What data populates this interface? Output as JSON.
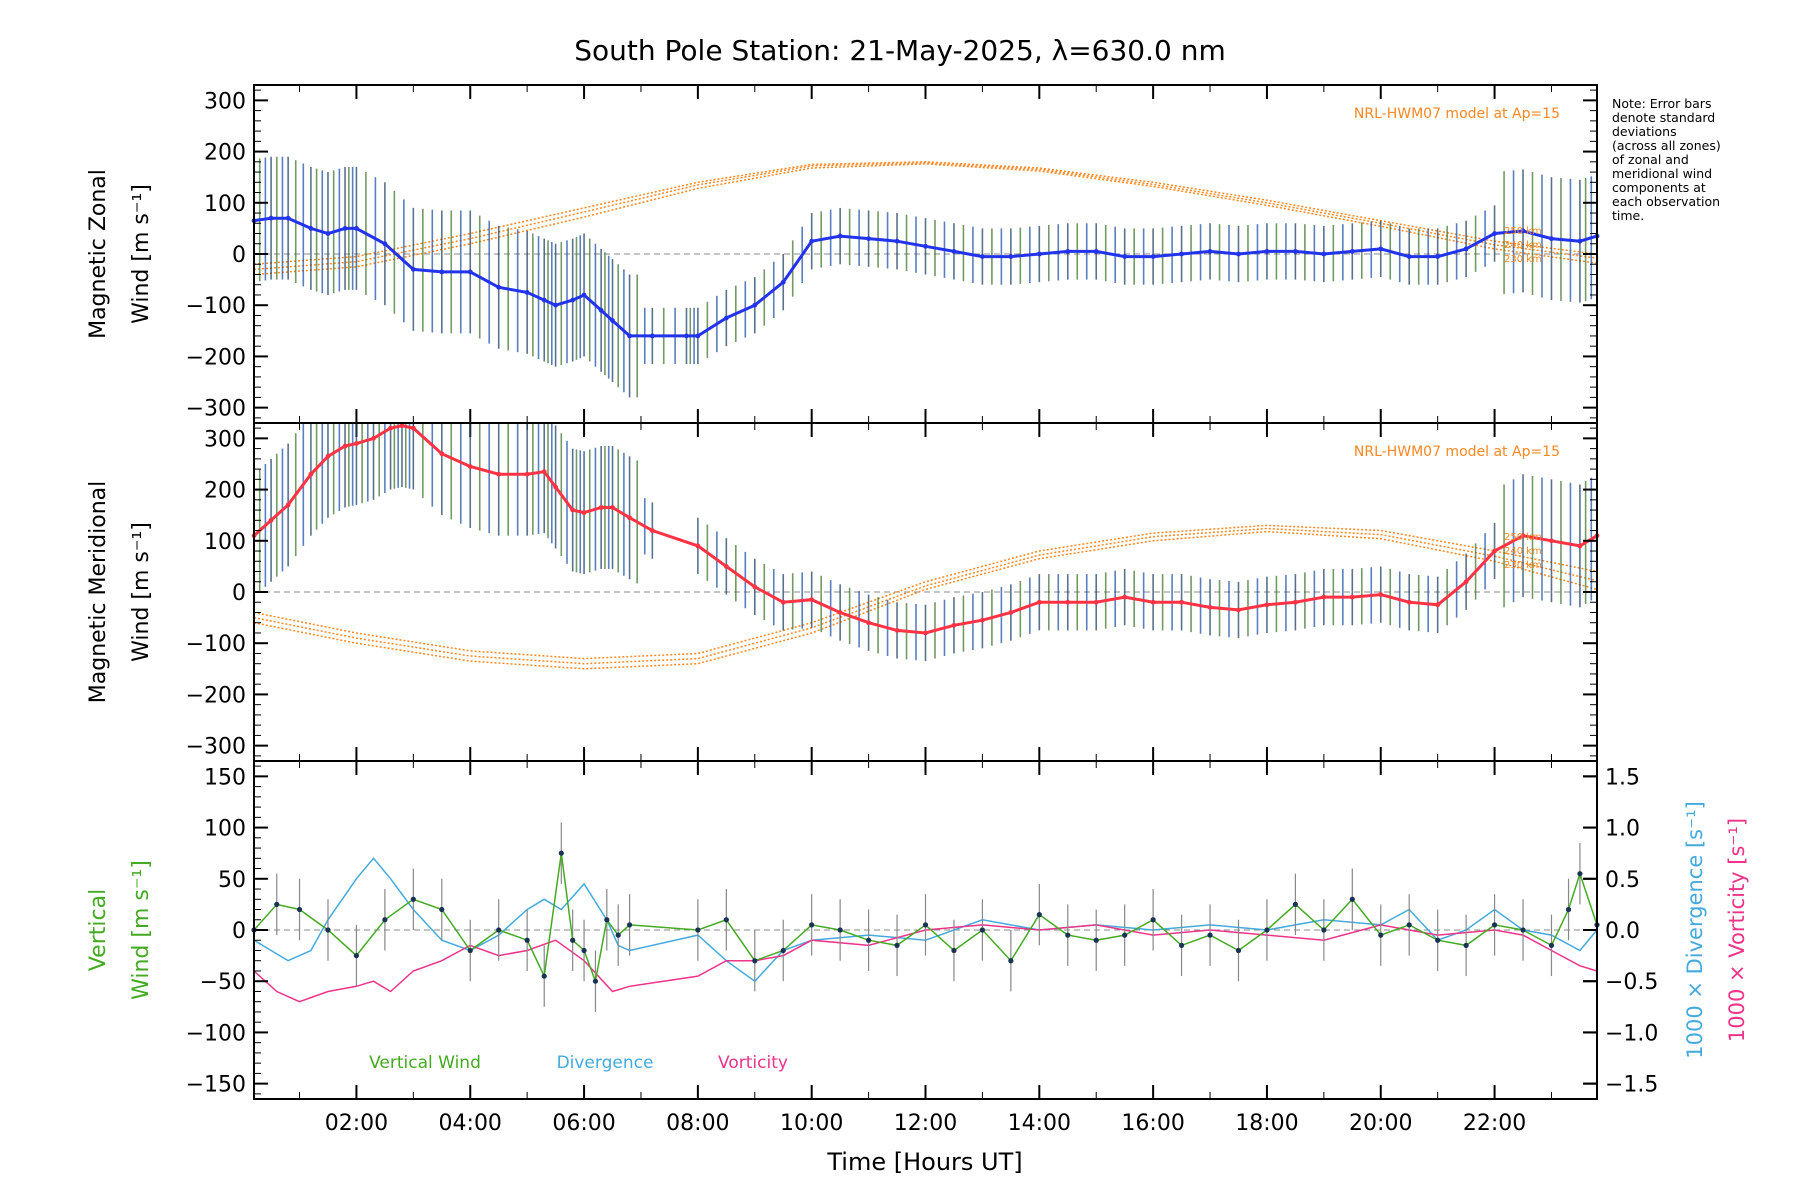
{
  "chart_data": {
    "type": "line",
    "title": "South Pole Station: 21-May-2025, λ=630.0 nm",
    "note_lines": [
      "Note: Error bars",
      "denote standard",
      "deviations",
      "(across all zones)",
      "of zonal and",
      "meridional wind",
      "components at",
      "each observation",
      "time."
    ],
    "xlabel": "Time [Hours UT]",
    "xlim": [
      0.2,
      23.8
    ],
    "xticks": [
      {
        "value": 2,
        "label": "02:00"
      },
      {
        "value": 4,
        "label": "04:00"
      },
      {
        "value": 6,
        "label": "06:00"
      },
      {
        "value": 8,
        "label": "08:00"
      },
      {
        "value": 10,
        "label": "10:00"
      },
      {
        "value": 12,
        "label": "12:00"
      },
      {
        "value": 14,
        "label": "14:00"
      },
      {
        "value": 16,
        "label": "16:00"
      },
      {
        "value": 18,
        "label": "18:00"
      },
      {
        "value": 20,
        "label": "20:00"
      },
      {
        "value": 22,
        "label": "22:00"
      }
    ],
    "colors": {
      "zonal": "#2233ee",
      "meridional": "#ff3344",
      "model": "#ff8822",
      "vertical": "#44aa22",
      "divergence": "#44aadd",
      "vorticity": "#ee3388",
      "zero_line": "#888888",
      "error_bar": "#224466"
    },
    "panels": [
      {
        "id": "zonal",
        "ylabel_1": "Magnetic Zonal",
        "ylabel_2": "Wind [m s⁻¹]",
        "ylim": [
          -330,
          330
        ],
        "yticks": [
          -300,
          -200,
          -100,
          0,
          100,
          200,
          300
        ],
        "model_label": "NRL-HWM07 model at Ap=15",
        "series": {
          "name": "Magnetic Zonal Wind",
          "x": [
            0.2,
            0.5,
            0.8,
            1.2,
            1.5,
            1.8,
            2.0,
            2.5,
            3.0,
            3.5,
            4.0,
            4.5,
            5.0,
            5.3,
            5.5,
            5.8,
            6.0,
            6.3,
            6.5,
            6.8,
            7.2,
            7.8,
            8.0,
            8.5,
            9.0,
            9.5,
            10.0,
            10.5,
            11.0,
            11.5,
            12.0,
            12.5,
            13.0,
            13.5,
            14.0,
            14.5,
            15.0,
            15.5,
            16.0,
            16.5,
            17.0,
            17.5,
            18.0,
            18.5,
            19.0,
            19.5,
            20.0,
            20.5,
            21.0,
            21.5,
            22.0,
            22.5,
            23.0,
            23.5,
            23.8
          ],
          "y": [
            65,
            70,
            70,
            50,
            40,
            50,
            50,
            20,
            -30,
            -35,
            -35,
            -65,
            -75,
            -90,
            -100,
            -90,
            -80,
            -110,
            -130,
            -160,
            -160,
            -160,
            -160,
            -125,
            -100,
            -55,
            25,
            35,
            30,
            25,
            15,
            5,
            -5,
            -5,
            0,
            5,
            5,
            -5,
            -5,
            0,
            5,
            0,
            5,
            5,
            0,
            5,
            10,
            -5,
            -5,
            10,
            40,
            45,
            30,
            25,
            35
          ]
        },
        "model_curves": [
          {
            "x": [
              0.2,
              2,
              4,
              6,
              8,
              10,
              12,
              14,
              16,
              18,
              20,
              22,
              23.8
            ],
            "y": [
              -20,
              -5,
              40,
              90,
              140,
              175,
              180,
              168,
              140,
              105,
              65,
              25,
              0
            ]
          },
          {
            "x": [
              0.2,
              2,
              4,
              6,
              8,
              10,
              12,
              14,
              16,
              18,
              20,
              22,
              23.8
            ],
            "y": [
              -30,
              -15,
              30,
              82,
              135,
              172,
              178,
              165,
              136,
              100,
              60,
              18,
              -8
            ]
          },
          {
            "x": [
              0.2,
              2,
              4,
              6,
              8,
              10,
              12,
              14,
              16,
              18,
              20,
              22,
              23.8
            ],
            "y": [
              -40,
              -25,
              20,
              72,
              128,
              168,
              176,
              162,
              132,
              95,
              54,
              10,
              -18
            ]
          }
        ],
        "model_altitude_labels": [
          "250 km",
          "240 km",
          "230 km"
        ]
      },
      {
        "id": "meridional",
        "ylabel_1": "Magnetic Meridional",
        "ylabel_2": "Wind [m s⁻¹]",
        "ylim": [
          -330,
          330
        ],
        "yticks": [
          -300,
          -200,
          -100,
          0,
          100,
          200,
          300
        ],
        "model_label": "NRL-HWM07 model at Ap=15",
        "series": {
          "name": "Magnetic Meridional Wind",
          "x": [
            0.2,
            0.5,
            0.8,
            1.2,
            1.5,
            1.8,
            2.0,
            2.3,
            2.6,
            2.8,
            3.0,
            3.5,
            4.0,
            4.5,
            5.0,
            5.3,
            5.5,
            5.8,
            6.0,
            6.3,
            6.5,
            6.8,
            7.2,
            8.0,
            8.5,
            9.0,
            9.5,
            10.0,
            10.5,
            11.0,
            11.5,
            12.0,
            12.5,
            13.0,
            13.5,
            14.0,
            14.5,
            15.0,
            15.5,
            16.0,
            16.5,
            17.0,
            17.5,
            18.0,
            18.5,
            19.0,
            19.5,
            20.0,
            20.5,
            21.0,
            21.5,
            22.0,
            22.5,
            23.0,
            23.5,
            23.8
          ],
          "y": [
            110,
            140,
            170,
            230,
            265,
            285,
            290,
            300,
            320,
            325,
            320,
            270,
            245,
            230,
            230,
            235,
            205,
            160,
            155,
            165,
            165,
            145,
            120,
            90,
            50,
            10,
            -20,
            -15,
            -40,
            -60,
            -75,
            -80,
            -65,
            -55,
            -40,
            -20,
            -20,
            -20,
            -10,
            -20,
            -20,
            -30,
            -35,
            -25,
            -20,
            -10,
            -10,
            -5,
            -20,
            -25,
            20,
            80,
            110,
            100,
            90,
            110
          ]
        },
        "model_curves": [
          {
            "x": [
              0.2,
              2,
              4,
              6,
              8,
              10,
              12,
              14,
              16,
              18,
              20,
              22,
              23.8
            ],
            "y": [
              -40,
              -80,
              -115,
              -130,
              -120,
              -60,
              20,
              80,
              115,
              130,
              120,
              80,
              40
            ]
          },
          {
            "x": [
              0.2,
              2,
              4,
              6,
              8,
              10,
              12,
              14,
              16,
              18,
              20,
              22,
              23.8
            ],
            "y": [
              -50,
              -90,
              -125,
              -140,
              -130,
              -70,
              12,
              72,
              108,
              124,
              112,
              70,
              22
            ]
          },
          {
            "x": [
              0.2,
              2,
              4,
              6,
              8,
              10,
              12,
              14,
              16,
              18,
              20,
              22,
              23.8
            ],
            "y": [
              -60,
              -100,
              -135,
              -150,
              -140,
              -80,
              5,
              65,
              100,
              118,
              104,
              60,
              5
            ]
          }
        ],
        "model_altitude_labels": [
          "250 km",
          "240 km",
          "230 km"
        ]
      },
      {
        "id": "vertical",
        "ylabel_1": "Vertical",
        "ylabel_2": "Wind [m s⁻¹]",
        "ylim": [
          -165,
          165
        ],
        "yticks": [
          -150,
          -100,
          -50,
          0,
          50,
          100,
          150
        ],
        "right_axis": {
          "ylim": [
            -1.65,
            1.65
          ],
          "yticks": [
            {
              "value": -1.5,
              "label": "−1.5"
            },
            {
              "value": -1.0,
              "label": "−1.0"
            },
            {
              "value": -0.5,
              "label": "−0.5"
            },
            {
              "value": 0.0,
              "label": "0.0"
            },
            {
              "value": 0.5,
              "label": "0.5"
            },
            {
              "value": 1.0,
              "label": "1.0"
            },
            {
              "value": 1.5,
              "label": "1.5"
            }
          ],
          "ylabel_divergence": "1000 × Divergence [s⁻¹]",
          "ylabel_vorticity": "1000 × Vorticity [s⁻¹]"
        },
        "legend": [
          "Vertical Wind",
          "Divergence",
          "Vorticity"
        ],
        "vertical_wind": {
          "x": [
            0.2,
            0.6,
            1.0,
            1.5,
            2.0,
            2.5,
            3.0,
            3.5,
            4.0,
            4.5,
            5.0,
            5.3,
            5.6,
            5.8,
            6.0,
            6.2,
            6.4,
            6.6,
            6.8,
            8.0,
            8.5,
            9.0,
            9.5,
            10.0,
            10.5,
            11.0,
            11.5,
            12.0,
            12.5,
            13.0,
            13.5,
            14.0,
            14.5,
            15.0,
            15.5,
            16.0,
            16.5,
            17.0,
            17.5,
            18.0,
            18.5,
            19.0,
            19.5,
            20.0,
            20.5,
            21.0,
            21.5,
            22.0,
            22.5,
            23.0,
            23.3,
            23.5,
            23.8
          ],
          "y": [
            0,
            25,
            20,
            0,
            -25,
            10,
            30,
            20,
            -20,
            0,
            -10,
            -45,
            75,
            -10,
            -20,
            -50,
            10,
            -5,
            5,
            0,
            10,
            -30,
            -20,
            5,
            0,
            -10,
            -15,
            5,
            -20,
            0,
            -30,
            15,
            -5,
            -10,
            -5,
            10,
            -15,
            -5,
            -20,
            0,
            25,
            0,
            30,
            -5,
            5,
            -10,
            -15,
            5,
            0,
            -15,
            20,
            55,
            5
          ]
        },
        "divergence": {
          "x": [
            0.2,
            0.5,
            0.8,
            1.2,
            1.5,
            2.0,
            2.3,
            2.6,
            3.0,
            3.5,
            4.0,
            4.5,
            5.0,
            5.3,
            5.6,
            6.0,
            6.4,
            6.6,
            6.8,
            8.0,
            8.5,
            9.0,
            9.5,
            10.0,
            11.0,
            12.0,
            13.0,
            14.0,
            15.0,
            16.0,
            17.0,
            18.0,
            19.0,
            20.0,
            20.5,
            21.0,
            21.5,
            22.0,
            22.5,
            23.0,
            23.5,
            23.8
          ],
          "y": [
            -0.1,
            -0.2,
            -0.3,
            -0.2,
            0.1,
            0.5,
            0.7,
            0.5,
            0.2,
            -0.1,
            -0.2,
            -0.05,
            0.2,
            0.3,
            0.2,
            0.45,
            0.1,
            -0.15,
            -0.2,
            -0.05,
            -0.3,
            -0.5,
            -0.2,
            -0.1,
            -0.05,
            -0.1,
            0.1,
            0.0,
            0.05,
            0.0,
            0.05,
            0.0,
            0.1,
            0.05,
            0.2,
            -0.1,
            0.0,
            0.2,
            0.0,
            -0.05,
            -0.2,
            0.0
          ]
        },
        "vorticity": {
          "x": [
            0.2,
            0.6,
            1.0,
            1.5,
            2.0,
            2.3,
            2.6,
            3.0,
            3.5,
            4.0,
            4.5,
            5.0,
            5.5,
            6.0,
            6.5,
            6.8,
            8.0,
            8.5,
            9.0,
            9.5,
            10.0,
            11.0,
            12.0,
            13.0,
            14.0,
            15.0,
            16.0,
            17.0,
            18.0,
            19.0,
            20.0,
            21.0,
            22.0,
            22.5,
            23.0,
            23.5,
            23.8
          ],
          "y": [
            -0.4,
            -0.6,
            -0.7,
            -0.6,
            -0.55,
            -0.5,
            -0.6,
            -0.4,
            -0.3,
            -0.15,
            -0.25,
            -0.2,
            -0.1,
            -0.3,
            -0.6,
            -0.55,
            -0.45,
            -0.3,
            -0.3,
            -0.25,
            -0.1,
            -0.15,
            0.0,
            0.05,
            0.0,
            0.05,
            -0.05,
            0.0,
            -0.05,
            -0.1,
            0.05,
            -0.05,
            0.0,
            -0.05,
            -0.2,
            -0.35,
            -0.4
          ]
        }
      }
    ]
  }
}
